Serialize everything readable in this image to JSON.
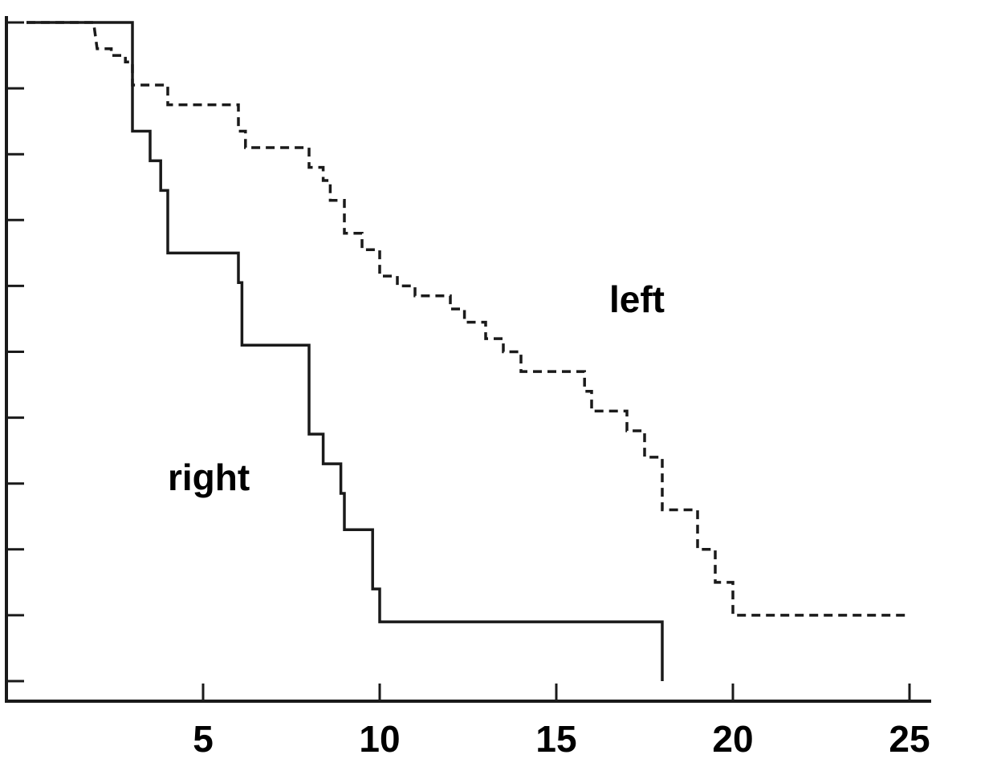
{
  "chart_data": {
    "type": "line",
    "title": "",
    "xlabel": "",
    "ylabel": "",
    "xlim": [
      -0.4,
      25.5
    ],
    "ylim": [
      0,
      1.0
    ],
    "x_ticks": [
      5,
      10,
      15,
      20,
      25
    ],
    "x_tick_labels": [
      "5",
      "10",
      "15",
      "20",
      "25"
    ],
    "y_ticks": [
      0,
      0.1,
      0.2,
      0.3,
      0.4,
      0.5,
      0.6,
      0.7,
      0.8,
      0.9,
      1.0
    ],
    "y_tick_labels_shown": false,
    "grid": false,
    "legend": "none (series labeled inline)",
    "step": true,
    "series": [
      {
        "name": "right",
        "style": "solid",
        "color": "#1a1a1a",
        "label_position": [
          4.0,
          0.29
        ],
        "points": [
          [
            0,
            1.0
          ],
          [
            3.0,
            1.0
          ],
          [
            3.0,
            0.835
          ],
          [
            3.5,
            0.835
          ],
          [
            3.5,
            0.79
          ],
          [
            3.8,
            0.79
          ],
          [
            3.8,
            0.745
          ],
          [
            4.0,
            0.745
          ],
          [
            4.0,
            0.65
          ],
          [
            6.0,
            0.65
          ],
          [
            6.0,
            0.605
          ],
          [
            6.1,
            0.605
          ],
          [
            6.1,
            0.51
          ],
          [
            8.0,
            0.51
          ],
          [
            8.0,
            0.375
          ],
          [
            8.4,
            0.375
          ],
          [
            8.4,
            0.33
          ],
          [
            8.9,
            0.33
          ],
          [
            8.9,
            0.285
          ],
          [
            9.0,
            0.285
          ],
          [
            9.0,
            0.23
          ],
          [
            9.8,
            0.23
          ],
          [
            9.8,
            0.14
          ],
          [
            10.0,
            0.14
          ],
          [
            10.0,
            0.09
          ],
          [
            18.0,
            0.09
          ],
          [
            18.0,
            0.0
          ]
        ]
      },
      {
        "name": "left",
        "style": "dashed",
        "color": "#1a1a1a",
        "label_position": [
          16.5,
          0.56
        ],
        "points": [
          [
            0,
            1.0
          ],
          [
            1.9,
            1.0
          ],
          [
            2.0,
            0.96
          ],
          [
            2.4,
            0.96
          ],
          [
            2.4,
            0.95
          ],
          [
            2.8,
            0.95
          ],
          [
            2.8,
            0.94
          ],
          [
            3.0,
            0.94
          ],
          [
            3.0,
            0.905
          ],
          [
            4.0,
            0.905
          ],
          [
            4.0,
            0.875
          ],
          [
            6.0,
            0.875
          ],
          [
            6.0,
            0.835
          ],
          [
            6.2,
            0.835
          ],
          [
            6.2,
            0.81
          ],
          [
            8.0,
            0.81
          ],
          [
            8.0,
            0.78
          ],
          [
            8.4,
            0.78
          ],
          [
            8.4,
            0.76
          ],
          [
            8.6,
            0.76
          ],
          [
            8.6,
            0.73
          ],
          [
            9.0,
            0.73
          ],
          [
            9.0,
            0.68
          ],
          [
            9.5,
            0.68
          ],
          [
            9.5,
            0.655
          ],
          [
            10.0,
            0.655
          ],
          [
            10.0,
            0.615
          ],
          [
            10.5,
            0.615
          ],
          [
            10.5,
            0.6
          ],
          [
            11.0,
            0.6
          ],
          [
            11.0,
            0.585
          ],
          [
            12.0,
            0.585
          ],
          [
            12.0,
            0.565
          ],
          [
            12.4,
            0.565
          ],
          [
            12.4,
            0.545
          ],
          [
            13.0,
            0.545
          ],
          [
            13.0,
            0.52
          ],
          [
            13.5,
            0.52
          ],
          [
            13.5,
            0.5
          ],
          [
            14.0,
            0.5
          ],
          [
            14.0,
            0.47
          ],
          [
            15.8,
            0.47
          ],
          [
            15.8,
            0.44
          ],
          [
            16.0,
            0.44
          ],
          [
            16.0,
            0.41
          ],
          [
            17.0,
            0.41
          ],
          [
            17.0,
            0.38
          ],
          [
            17.5,
            0.38
          ],
          [
            17.5,
            0.34
          ],
          [
            18.0,
            0.34
          ],
          [
            18.0,
            0.26
          ],
          [
            19.0,
            0.26
          ],
          [
            19.0,
            0.2
          ],
          [
            19.5,
            0.2
          ],
          [
            19.5,
            0.15
          ],
          [
            20.0,
            0.15
          ],
          [
            20.0,
            0.1
          ],
          [
            25.0,
            0.1
          ]
        ]
      }
    ]
  }
}
